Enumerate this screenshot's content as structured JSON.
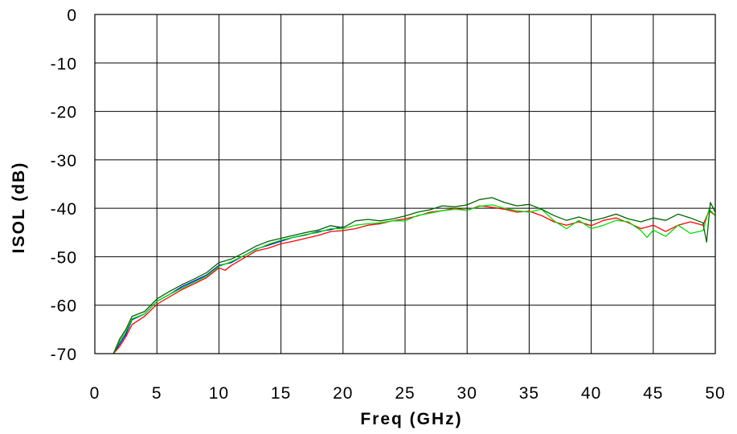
{
  "chart_data": {
    "type": "line",
    "title": "",
    "xlabel": "Freq (GHz)",
    "ylabel": "ISOL (dB)",
    "xlim": [
      0,
      50
    ],
    "ylim": [
      -70,
      0
    ],
    "xticks": [
      "0",
      "5",
      "10",
      "15",
      "20",
      "25",
      "30",
      "35",
      "40",
      "45",
      "50"
    ],
    "yticks": [
      "0",
      "-10",
      "-20",
      "-30",
      "-40",
      "-50",
      "-60",
      "-70"
    ],
    "grid": true,
    "legend": "none",
    "series": [
      {
        "color": "#0000ff",
        "x": [
          1.5,
          2,
          2.5,
          3,
          4,
          5,
          6,
          7,
          8,
          9,
          10,
          11,
          12,
          13,
          14,
          15,
          16,
          17,
          18,
          19,
          20
        ],
        "y": [
          -70,
          -68,
          -66,
          -63,
          -61.8,
          -59.2,
          -57.8,
          -56.2,
          -55,
          -53.8,
          -51.8,
          -51.2,
          -49.8,
          -48.4,
          -47.6,
          -46.8,
          -46,
          -45.5,
          -44.8,
          -44.4,
          -43.8
        ]
      },
      {
        "color": "#ff0000",
        "x": [
          1.5,
          2,
          2.5,
          3,
          4,
          5,
          6,
          7,
          8,
          9,
          10,
          10.5,
          11,
          12,
          13,
          14,
          15,
          16,
          17,
          18,
          19,
          20,
          21,
          22,
          23,
          24,
          25,
          26,
          27,
          28,
          29,
          30,
          31,
          32,
          33,
          34,
          35,
          36,
          37,
          38,
          39,
          40,
          41,
          42,
          43,
          44,
          45,
          46,
          47,
          48,
          49,
          49.5,
          50
        ],
        "y": [
          -70,
          -68.5,
          -66.5,
          -64,
          -62.3,
          -59.8,
          -58.3,
          -56.8,
          -55.6,
          -54.3,
          -52.3,
          -52.8,
          -51.8,
          -50.3,
          -48.8,
          -48.2,
          -47.3,
          -46.8,
          -46.2,
          -45.6,
          -44.8,
          -44.6,
          -44.2,
          -43.5,
          -43.2,
          -42.6,
          -42.2,
          -41.6,
          -40.8,
          -40.5,
          -40,
          -40.4,
          -39.5,
          -39.8,
          -40.2,
          -40.8,
          -40.6,
          -41.5,
          -42.8,
          -43.5,
          -42.8,
          -43.6,
          -42.5,
          -42,
          -43,
          -44.2,
          -43.5,
          -44.8,
          -43.5,
          -42.8,
          -43.5,
          -40.5,
          -41.5
        ]
      },
      {
        "color": "#00dd00",
        "x": [
          1.5,
          2,
          2.5,
          3,
          4,
          5,
          6,
          7,
          8,
          9,
          10,
          11,
          12,
          13,
          14,
          15,
          16,
          17,
          18,
          19,
          20,
          21,
          22,
          23,
          24,
          25,
          26,
          27,
          28,
          29,
          30,
          31,
          32,
          33,
          34,
          35,
          36,
          37,
          38,
          39,
          40,
          41,
          42,
          43,
          44,
          44.5,
          45,
          46,
          47,
          48,
          49,
          49.5,
          50
        ],
        "y": [
          -70,
          -67.5,
          -65.5,
          -62.8,
          -61.8,
          -59.2,
          -57.8,
          -56.5,
          -55.3,
          -54,
          -52,
          -51,
          -49.8,
          -48.5,
          -47.4,
          -46.6,
          -46,
          -45.4,
          -45,
          -44.2,
          -44.2,
          -43.5,
          -43.2,
          -43,
          -42.6,
          -42.6,
          -41.5,
          -41,
          -40.5,
          -40.2,
          -40.4,
          -39.6,
          -39.3,
          -40,
          -40.5,
          -40.8,
          -40.2,
          -42.6,
          -44.2,
          -42.5,
          -44.2,
          -43.5,
          -42.5,
          -42.8,
          -44.6,
          -46,
          -44.5,
          -45.8,
          -43.5,
          -45.2,
          -44.6,
          -40.2,
          -41.5
        ]
      },
      {
        "color": "#006400",
        "x": [
          1.5,
          2,
          2.5,
          3,
          4,
          5,
          6,
          7,
          8,
          9,
          10,
          11,
          12,
          13,
          14,
          15,
          16,
          17,
          18,
          19,
          20,
          21,
          22,
          23,
          24,
          25,
          26,
          27,
          28,
          29,
          30,
          31,
          32,
          33,
          34,
          35,
          36,
          37,
          38,
          39,
          40,
          41,
          42,
          43,
          44,
          45,
          46,
          47,
          48,
          49,
          49.3,
          49.6,
          50
        ],
        "y": [
          -70,
          -67,
          -65,
          -62.3,
          -61.3,
          -58.7,
          -57.2,
          -55.8,
          -54.6,
          -53.3,
          -51.2,
          -50.5,
          -49.2,
          -47.8,
          -46.8,
          -46.2,
          -45.6,
          -45,
          -44.5,
          -43.6,
          -44,
          -42.6,
          -42.3,
          -42.6,
          -42.2,
          -41.6,
          -40.8,
          -40.3,
          -39.5,
          -39.7,
          -39.3,
          -38.2,
          -37.8,
          -38.8,
          -39.5,
          -39.2,
          -40.2,
          -41.5,
          -42.5,
          -41.8,
          -42.6,
          -42,
          -41.2,
          -42.2,
          -42.8,
          -42,
          -42.5,
          -41.2,
          -42,
          -43,
          -47,
          -38.8,
          -40.8
        ]
      }
    ]
  }
}
